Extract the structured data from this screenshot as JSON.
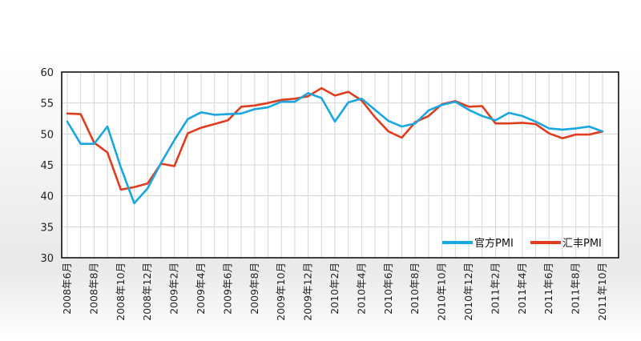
{
  "chart_data": {
    "type": "line",
    "categories": [
      "2008年6月",
      "2008年7月",
      "2008年8月",
      "2008年9月",
      "2008年10月",
      "2008年11月",
      "2008年12月",
      "2009年1月",
      "2009年2月",
      "2009年3月",
      "2009年4月",
      "2009年5月",
      "2009年6月",
      "2009年7月",
      "2009年8月",
      "2009年9月",
      "2009年10月",
      "2009年11月",
      "2009年12月",
      "2010年1月",
      "2010年2月",
      "2010年3月",
      "2010年4月",
      "2010年5月",
      "2010年6月",
      "2010年7月",
      "2010年8月",
      "2010年9月",
      "2010年10月",
      "2010年11月",
      "2010年12月",
      "2011年1月",
      "2011年2月",
      "2011年3月",
      "2011年4月",
      "2011年5月",
      "2011年6月",
      "2011年7月",
      "2011年8月",
      "2011年9月",
      "2011年10月"
    ],
    "tick_labels": [
      "2008年6月",
      "2008年8月",
      "2008年10月",
      "2008年12月",
      "2009年2月",
      "2009年4月",
      "2009年6月",
      "2009年8月",
      "2009年10月",
      "2009年12月",
      "2010年2月",
      "2010年4月",
      "2010年6月",
      "2010年8月",
      "2010年10月",
      "2010年12月",
      "2011年2月",
      "2011年4月",
      "2011年6月",
      "2011年8月",
      "2011年10月"
    ],
    "series": [
      {
        "name": "官方PMI",
        "color": "#1aa6e0",
        "values": [
          52.0,
          48.4,
          48.4,
          51.2,
          44.6,
          38.8,
          41.2,
          45.3,
          49.0,
          52.4,
          53.5,
          53.1,
          53.2,
          53.3,
          54.0,
          54.3,
          55.2,
          55.2,
          56.6,
          55.8,
          52.0,
          55.1,
          55.7,
          53.9,
          52.1,
          51.2,
          51.7,
          53.8,
          54.7,
          55.2,
          53.9,
          52.9,
          52.2,
          53.4,
          52.9,
          52.0,
          50.9,
          50.7,
          50.9,
          51.2,
          50.4
        ]
      },
      {
        "name": "汇丰PMI",
        "color": "#e03c1e",
        "values": [
          53.3,
          53.2,
          48.6,
          47.0,
          41.0,
          41.4,
          42.0,
          45.2,
          44.8,
          50.1,
          51.0,
          51.6,
          52.2,
          54.4,
          54.6,
          55.0,
          55.5,
          55.7,
          56.1,
          57.4,
          56.2,
          56.8,
          55.4,
          52.7,
          50.4,
          49.4,
          51.9,
          52.9,
          54.8,
          55.3,
          54.4,
          54.5,
          51.7,
          51.7,
          51.8,
          51.6,
          50.1,
          49.3,
          49.9,
          49.9,
          50.4
        ]
      }
    ],
    "ylim": [
      30,
      60
    ],
    "yticks": [
      30,
      35,
      40,
      45,
      50,
      55,
      60
    ],
    "grid": true,
    "legend_position": "bottom-right"
  }
}
